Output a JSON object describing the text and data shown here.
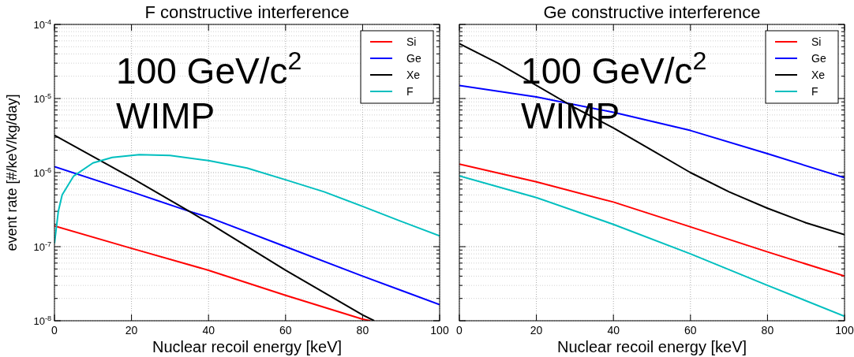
{
  "chart_data": [
    {
      "type": "line",
      "title": "F constructive interference",
      "xlabel": "Nuclear recoil energy [keV]",
      "ylabel": "event rate [#/keV/kg/day]",
      "annotations": [
        "100 GeV/c$^{2}$",
        "WIMP"
      ],
      "log": "y",
      "grid": true,
      "legend": "top right",
      "xlim": [
        0,
        100
      ],
      "xticks": [
        0,
        20,
        40,
        60,
        80,
        100
      ],
      "ylim": [
        1e-08,
        0.0001
      ],
      "yticks": [
        {
          "value": 1e-08,
          "label": "10$^{-8}$"
        },
        {
          "value": 1e-07,
          "label": "10$^{-7}$"
        },
        {
          "value": 1e-06,
          "label": "10$^{-6}$"
        },
        {
          "value": 1e-05,
          "label": "10$^{-5}$"
        },
        {
          "value": 0.0001,
          "label": "10$^{-4}$"
        }
      ],
      "series": [
        {
          "name": "Si",
          "color": "#ff0000",
          "x": [
            0,
            20,
            40,
            60,
            80,
            82
          ],
          "values": [
            1.9e-07,
            9.5e-08,
            4.8e-08,
            2.2e-08,
            1.05e-08,
            1e-08
          ]
        },
        {
          "name": "Ge",
          "color": "#0000ff",
          "x": [
            0,
            20,
            35,
            40,
            60,
            80,
            100
          ],
          "values": [
            1.2e-06,
            5.5e-07,
            3e-07,
            2.5e-07,
            1e-07,
            4e-08,
            1.65e-08
          ]
        },
        {
          "name": "Xe",
          "color": "#000000",
          "x": [
            0,
            20,
            35,
            40,
            60,
            80,
            83
          ],
          "values": [
            3.2e-06,
            8.5e-07,
            3e-07,
            2.1e-07,
            4.8e-08,
            1.2e-08,
            1e-08
          ]
        },
        {
          "name": "F",
          "color": "#00bfbf",
          "x": [
            0,
            1,
            2,
            5,
            10,
            15,
            22,
            30,
            40,
            50,
            60,
            70,
            80,
            90,
            100
          ],
          "values": [
            1.1e-07,
            3e-07,
            5e-07,
            9e-07,
            1.35e-06,
            1.6e-06,
            1.75e-06,
            1.7e-06,
            1.45e-06,
            1.15e-06,
            8e-07,
            5.5e-07,
            3.5e-07,
            2.2e-07,
            1.4e-07
          ]
        }
      ]
    },
    {
      "type": "line",
      "title": "Ge constructive interference",
      "xlabel": "Nuclear recoil energy [keV]",
      "annotations": [
        "100 GeV/c$^{2}$",
        "WIMP"
      ],
      "log": "y",
      "grid": true,
      "legend": "top right",
      "tick_labels": "x",
      "xlim": [
        0,
        100
      ],
      "xticks": [
        0,
        20,
        40,
        60,
        80,
        100
      ],
      "ylim": [
        1e-08,
        0.0001
      ],
      "yticks": [
        {
          "value": 1e-08,
          "label": null
        },
        {
          "value": 1e-07,
          "label": null
        },
        {
          "value": 1e-06,
          "label": null
        },
        {
          "value": 1e-05,
          "label": null
        },
        {
          "value": 0.0001,
          "label": null
        }
      ],
      "series": [
        {
          "name": "Si",
          "color": "#ff0000",
          "x": [
            0,
            20,
            40,
            60,
            80,
            100
          ],
          "values": [
            1.3e-06,
            7.5e-07,
            4e-07,
            1.85e-07,
            8.5e-08,
            4e-08
          ]
        },
        {
          "name": "Ge",
          "color": "#0000ff",
          "x": [
            0,
            20,
            40,
            60,
            80,
            100
          ],
          "values": [
            1.5e-05,
            1.05e-05,
            6.5e-06,
            3.7e-06,
            1.8e-06,
            8.5e-07
          ]
        },
        {
          "name": "Xe",
          "color": "#000000",
          "x": [
            0,
            10,
            20,
            30,
            40,
            50,
            60,
            70,
            80,
            90,
            100
          ],
          "values": [
            5.5e-05,
            3e-05,
            1.5e-05,
            7.5e-06,
            4e-06,
            2e-06,
            1e-06,
            5.5e-07,
            3.3e-07,
            2.1e-07,
            1.45e-07
          ]
        },
        {
          "name": "F",
          "color": "#00bfbf",
          "x": [
            0,
            20,
            40,
            60,
            80,
            100
          ],
          "values": [
            9e-07,
            4.6e-07,
            2e-07,
            8e-08,
            3e-08,
            1.15e-08
          ]
        }
      ]
    }
  ]
}
